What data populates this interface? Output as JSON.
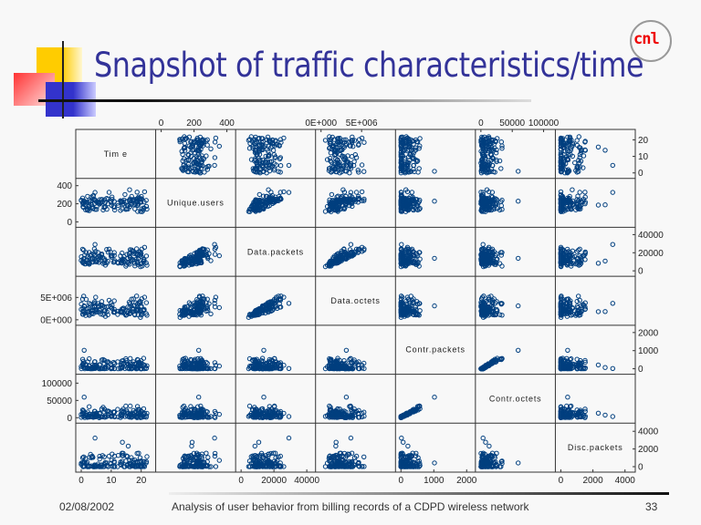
{
  "slide": {
    "title": "Snapshot of traffic characteristics/time",
    "logo_text": "cnl",
    "footer_date": "02/08/2002",
    "footer_caption": "Analysis of user behavior from billing records of a CDPD wireless network",
    "page_number": "33"
  },
  "colors": {
    "title": "#333399",
    "points": "#003f7f",
    "logo": "#ee0000"
  },
  "chart_data": {
    "type": "scatter",
    "subtype": "scatterplot-matrix",
    "title": "",
    "variables": [
      {
        "name": "Time",
        "label": "Tim e",
        "range": [
          0,
          23
        ],
        "ticks": [
          0,
          10,
          20
        ],
        "tick_labels": [
          "0",
          "10",
          "20"
        ]
      },
      {
        "name": "Unique.users",
        "label": "Unique.users",
        "range": [
          0,
          420
        ],
        "ticks": [
          0,
          200,
          400
        ],
        "tick_labels": [
          "0",
          "200",
          "400"
        ]
      },
      {
        "name": "Data.packets",
        "label": "Data.packets",
        "range": [
          0,
          42000
        ],
        "ticks": [
          0,
          20000,
          40000
        ],
        "tick_labels": [
          "0",
          "20000",
          "40000"
        ]
      },
      {
        "name": "Data.octets",
        "label": "Data.octets",
        "range": [
          0,
          8500000
        ],
        "ticks": [
          0,
          5000000
        ],
        "tick_labels": [
          "0E+000",
          "5E+006"
        ]
      },
      {
        "name": "Contr.packets",
        "label": "Contr.packets",
        "range": [
          0,
          2100
        ],
        "ticks": [
          0,
          1000,
          2000
        ],
        "tick_labels": [
          "0",
          "1000",
          "2000"
        ]
      },
      {
        "name": "Contr.octets",
        "label": "Contr.octets",
        "range": [
          0,
          110000
        ],
        "ticks": [
          0,
          50000,
          100000
        ],
        "tick_labels": [
          "0",
          "50000",
          "100000"
        ]
      },
      {
        "name": "Disc.packets",
        "label": "Disc.packets",
        "range": [
          0,
          4300
        ],
        "ticks": [
          0,
          2000,
          4000
        ],
        "tick_labels": [
          "0",
          "2000",
          "4000"
        ]
      }
    ],
    "axis_placement": {
      "top": [
        1,
        3,
        5
      ],
      "bottom": [
        0,
        2,
        4,
        6
      ],
      "left": [
        1,
        3,
        5
      ],
      "right": [
        0,
        2,
        4,
        6
      ]
    },
    "marker": "open-circle",
    "sample_size": 140
  }
}
